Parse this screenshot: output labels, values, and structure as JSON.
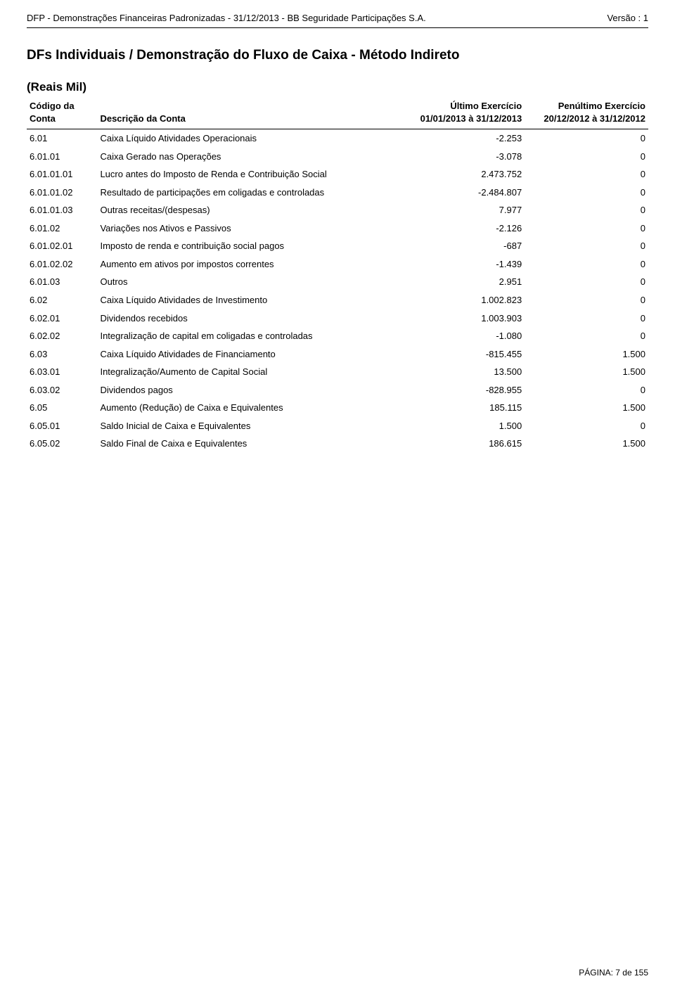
{
  "header": {
    "left": "DFP - Demonstrações Financeiras Padronizadas - 31/12/2013 - BB Seguridade Participações S.A.",
    "right": "Versão : 1"
  },
  "title": "DFs Individuais / Demonstração do Fluxo de Caixa  - Método Indireto",
  "subtitle": "(Reais Mil)",
  "columns": {
    "code": {
      "l1": "Código da",
      "l2": "Conta"
    },
    "desc": {
      "l1": "Descrição da Conta"
    },
    "v1": {
      "l1": "Último Exercício",
      "l2": "01/01/2013 à 31/12/2013"
    },
    "v2": {
      "l1": "Penúltimo Exercício",
      "l2": "20/12/2012 à 31/12/2012"
    }
  },
  "rows": [
    {
      "code": "6.01",
      "desc": "Caixa Líquido Atividades Operacionais",
      "v1": "-2.253",
      "v2": "0"
    },
    {
      "code": "6.01.01",
      "desc": "Caixa Gerado nas Operações",
      "v1": "-3.078",
      "v2": "0"
    },
    {
      "code": "6.01.01.01",
      "desc": "Lucro antes do Imposto de Renda e Contribuição Social",
      "v1": "2.473.752",
      "v2": "0"
    },
    {
      "code": "6.01.01.02",
      "desc": "Resultado de participações em coligadas e controladas",
      "v1": "-2.484.807",
      "v2": "0"
    },
    {
      "code": "6.01.01.03",
      "desc": "Outras receitas/(despesas)",
      "v1": "7.977",
      "v2": "0"
    },
    {
      "code": "6.01.02",
      "desc": "Variações nos Ativos e Passivos",
      "v1": "-2.126",
      "v2": "0"
    },
    {
      "code": "6.01.02.01",
      "desc": "Imposto de renda e contribuição social pagos",
      "v1": "-687",
      "v2": "0"
    },
    {
      "code": "6.01.02.02",
      "desc": "Aumento em ativos por impostos correntes",
      "v1": "-1.439",
      "v2": "0"
    },
    {
      "code": "6.01.03",
      "desc": "Outros",
      "v1": "2.951",
      "v2": "0"
    },
    {
      "code": "6.02",
      "desc": "Caixa Líquido Atividades de Investimento",
      "v1": "1.002.823",
      "v2": "0"
    },
    {
      "code": "6.02.01",
      "desc": "Dividendos recebidos",
      "v1": "1.003.903",
      "v2": "0"
    },
    {
      "code": "6.02.02",
      "desc": "Integralização de capital em coligadas e controladas",
      "v1": "-1.080",
      "v2": "0"
    },
    {
      "code": "6.03",
      "desc": "Caixa Líquido Atividades de Financiamento",
      "v1": "-815.455",
      "v2": "1.500"
    },
    {
      "code": "6.03.01",
      "desc": "Integralização/Aumento de Capital Social",
      "v1": "13.500",
      "v2": "1.500"
    },
    {
      "code": "6.03.02",
      "desc": "Dividendos pagos",
      "v1": "-828.955",
      "v2": "0"
    },
    {
      "code": "6.05",
      "desc": "Aumento (Redução) de Caixa e Equivalentes",
      "v1": "185.115",
      "v2": "1.500"
    },
    {
      "code": "6.05.01",
      "desc": "Saldo Inicial de Caixa e Equivalentes",
      "v1": "1.500",
      "v2": "0"
    },
    {
      "code": "6.05.02",
      "desc": "Saldo Final de Caixa e Equivalentes",
      "v1": "186.615",
      "v2": "1.500"
    }
  ],
  "footer": "PÁGINA: 7 de 155"
}
